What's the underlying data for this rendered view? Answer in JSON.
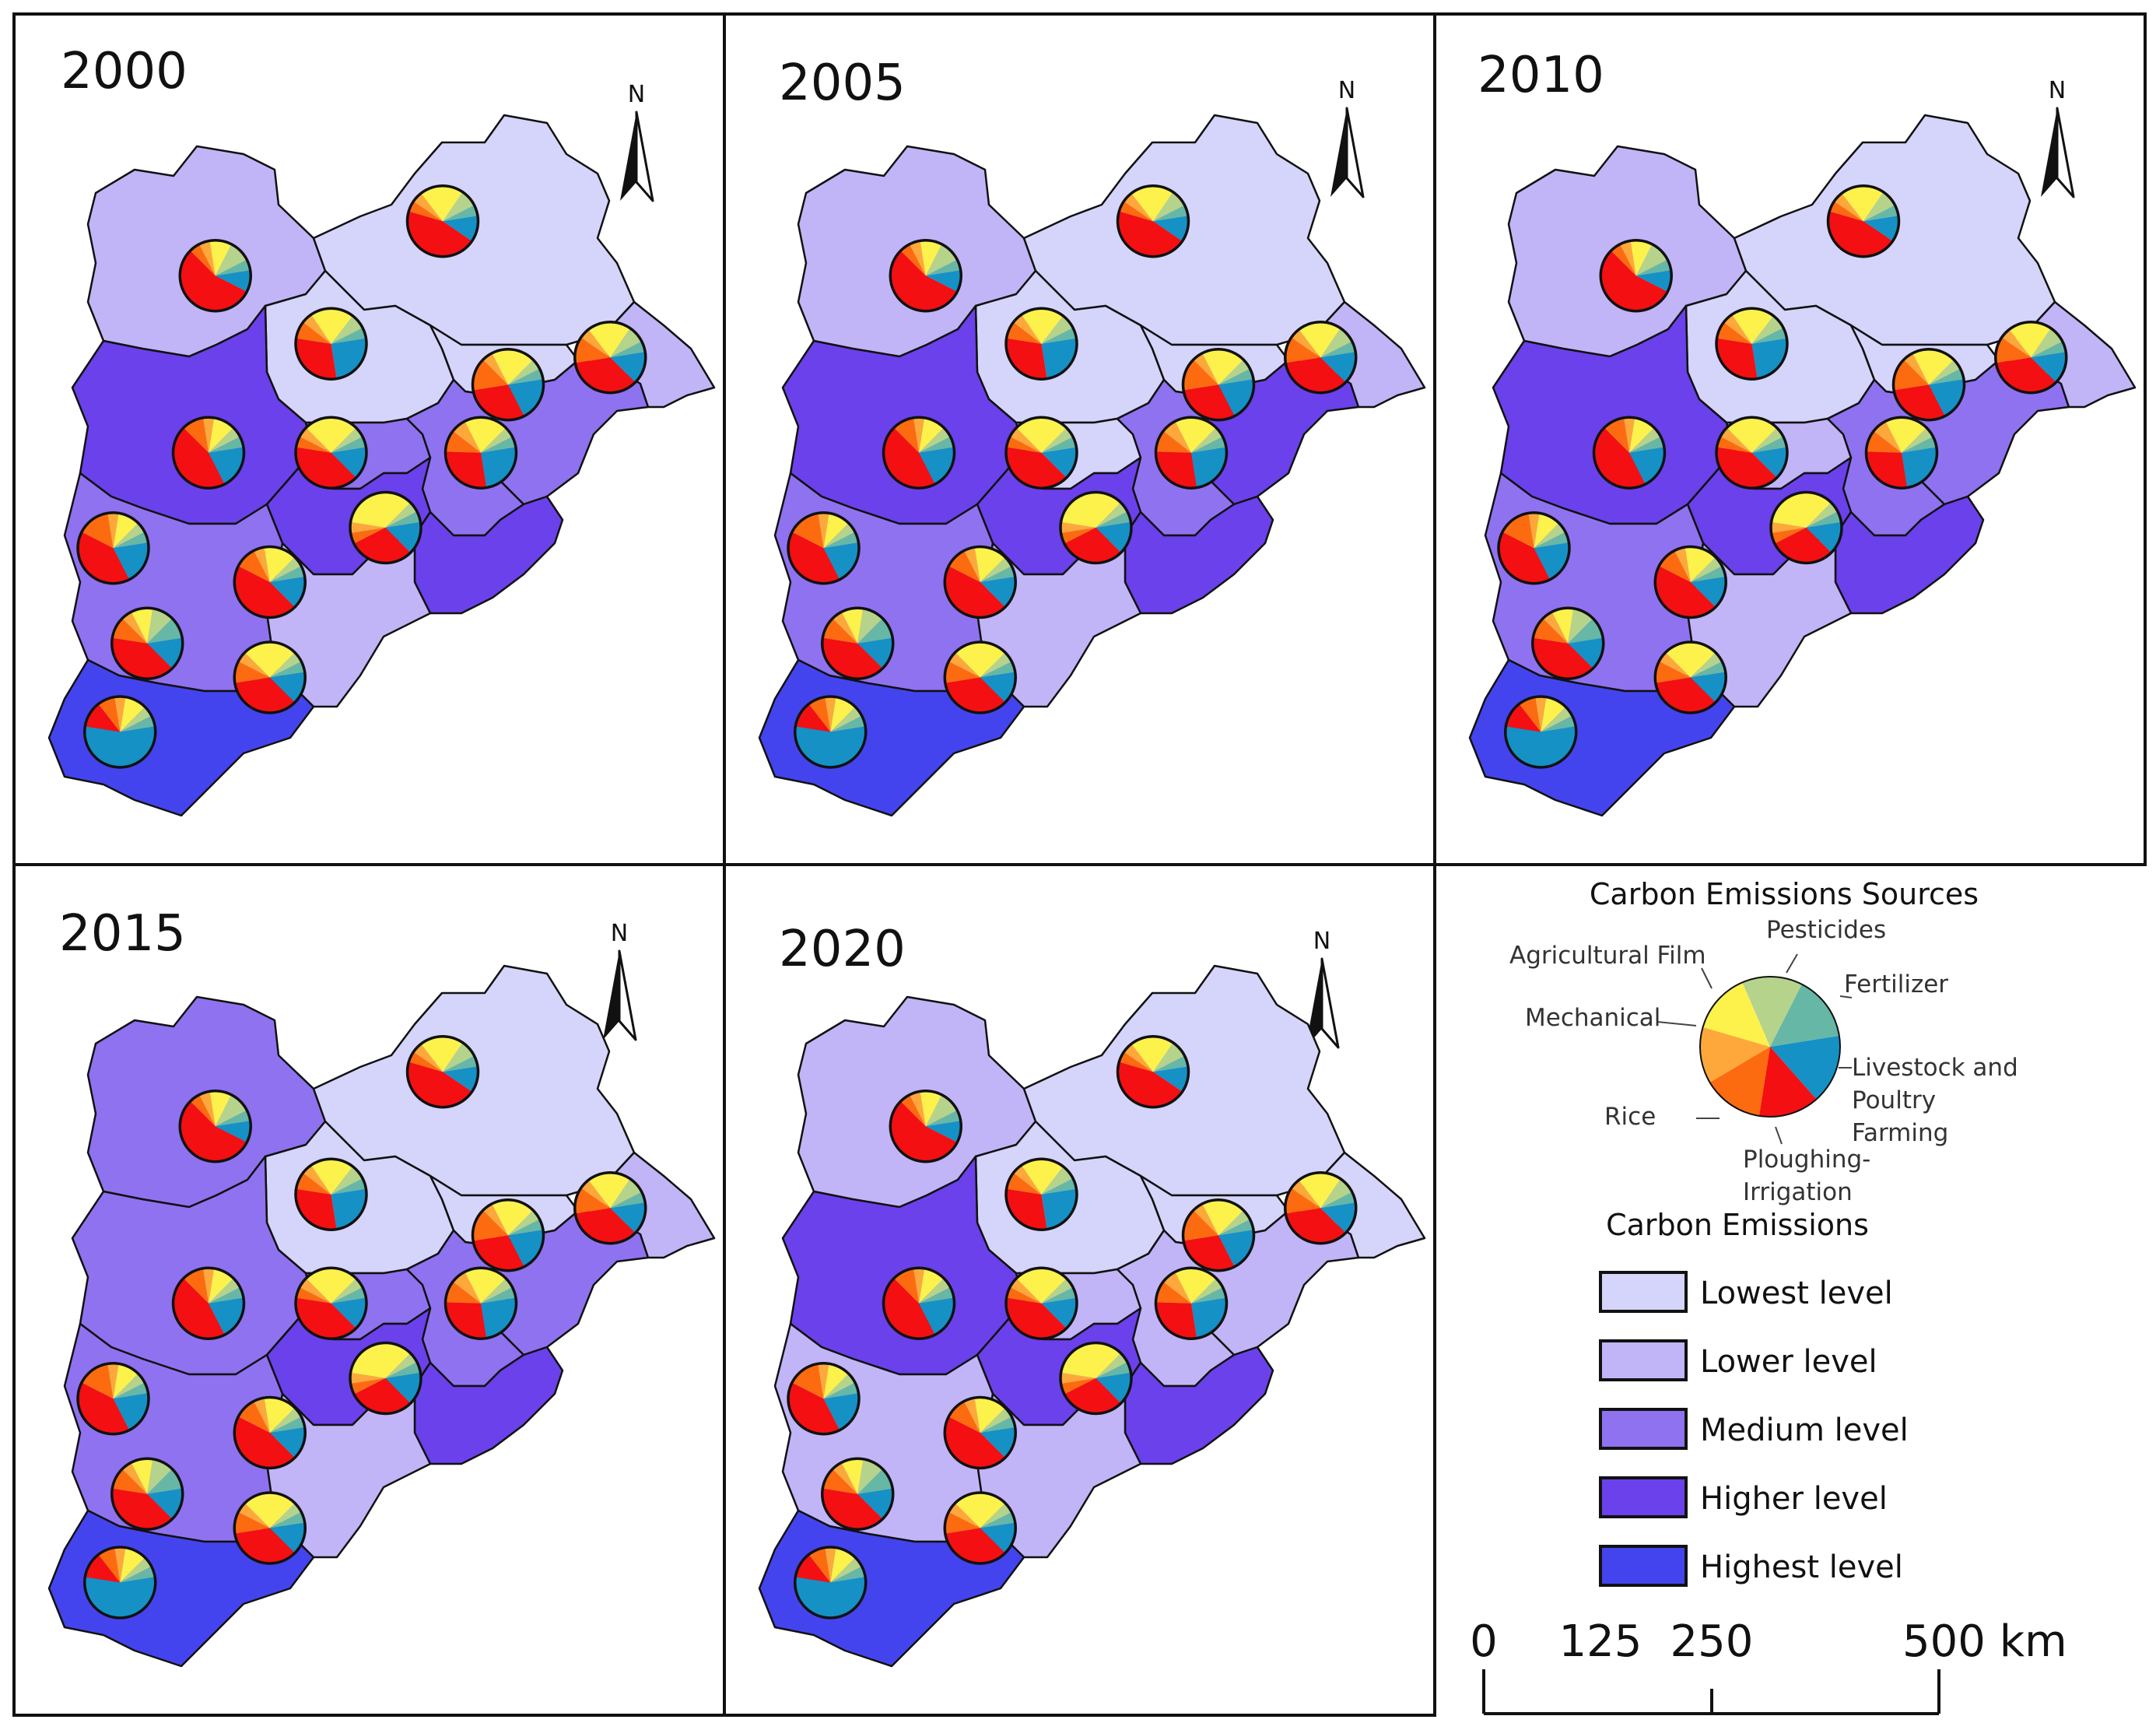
{
  "figure": {
    "panels": [
      {
        "year": "2000",
        "shades": [
          "lower",
          "lowest",
          "lowest",
          "lowest",
          "medium",
          "lower",
          "higher",
          "medium",
          "medium",
          "higher",
          "higher",
          "lower",
          "medium",
          "highest"
        ]
      },
      {
        "year": "2005",
        "shades": [
          "lower",
          "lowest",
          "lowest",
          "lowest",
          "higher",
          "lower",
          "higher",
          "lowest",
          "medium",
          "higher",
          "higher",
          "lower",
          "medium",
          "highest"
        ]
      },
      {
        "year": "2010",
        "shades": [
          "lower",
          "lowest",
          "lowest",
          "lowest",
          "medium",
          "lower",
          "higher",
          "lower",
          "medium",
          "higher",
          "higher",
          "lower",
          "medium",
          "highest"
        ]
      },
      {
        "year": "2015",
        "shades": [
          "medium",
          "lowest",
          "lowest",
          "lowest",
          "medium",
          "lower",
          "medium",
          "medium",
          "medium",
          "higher",
          "higher",
          "lower",
          "medium",
          "highest"
        ]
      },
      {
        "year": "2020",
        "shades": [
          "lower",
          "lowest",
          "lowest",
          "lowest",
          "lower",
          "lowest",
          "higher",
          "lower",
          "lower",
          "higher",
          "higher",
          "lower",
          "lower",
          "highest"
        ]
      }
    ],
    "north_label": "N"
  },
  "legend": {
    "sources_title": "Carbon Emissions Sources",
    "sources": [
      {
        "key": "fertilizer",
        "label": "Fertilizer",
        "color": "#1591c5",
        "share": 0.16
      },
      {
        "key": "livestock",
        "label": "Livestock and Poultry Farming",
        "label_lines": [
          "Livestock and",
          "Poultry",
          "Farming"
        ],
        "color": "#f40f12",
        "share": 0.14
      },
      {
        "key": "ploughing",
        "label": "Ploughing-Irrigation",
        "label_lines": [
          "Ploughing-",
          "Irrigation"
        ],
        "color": "#fd6b10",
        "share": 0.14
      },
      {
        "key": "rice",
        "label": "Rice",
        "color": "#fea83c",
        "share": 0.13
      },
      {
        "key": "mechanical",
        "label": "Mechanical",
        "color": "#fdf24c",
        "share": 0.14
      },
      {
        "key": "film",
        "label": "Agricultural Film",
        "color": "#b6d38c",
        "share": 0.14
      },
      {
        "key": "pesticides",
        "label": "Pesticides",
        "color": "#66b7a6",
        "share": 0.15
      }
    ],
    "levels_title": "Carbon Emissions",
    "levels": [
      {
        "key": "lowest",
        "label": "Lowest level",
        "color": "#d5d4fb"
      },
      {
        "key": "lower",
        "label": "Lower level",
        "color": "#c1b5f8"
      },
      {
        "key": "medium",
        "label": "Medium level",
        "color": "#8f72f0"
      },
      {
        "key": "higher",
        "label": "Higher level",
        "color": "#6b41eb"
      },
      {
        "key": "highest",
        "label": "Highest level",
        "color": "#4444ee"
      }
    ],
    "scale": {
      "ticks": [
        "0",
        "125",
        "250",
        "500 km"
      ]
    }
  },
  "pie_shares": [
    {
      "fertilizer": 0.1,
      "livestock": 0.55,
      "ploughing": 0.05,
      "rice": 0.05,
      "mechanical": 0.1,
      "film": 0.1,
      "pesticides": 0.05
    },
    {
      "fertilizer": 0.12,
      "livestock": 0.45,
      "ploughing": 0.05,
      "rice": 0.05,
      "mechanical": 0.2,
      "film": 0.08,
      "pesticides": 0.05
    },
    {
      "fertilizer": 0.25,
      "livestock": 0.3,
      "ploughing": 0.08,
      "rice": 0.05,
      "mechanical": 0.2,
      "film": 0.07,
      "pesticides": 0.05
    },
    {
      "fertilizer": 0.25,
      "livestock": 0.28,
      "ploughing": 0.1,
      "rice": 0.07,
      "mechanical": 0.2,
      "film": 0.05,
      "pesticides": 0.05
    },
    {
      "fertilizer": 0.2,
      "livestock": 0.3,
      "ploughing": 0.15,
      "rice": 0.05,
      "mechanical": 0.2,
      "film": 0.05,
      "pesticides": 0.05
    },
    {
      "fertilizer": 0.15,
      "livestock": 0.35,
      "ploughing": 0.12,
      "rice": 0.05,
      "mechanical": 0.2,
      "film": 0.08,
      "pesticides": 0.05
    },
    {
      "fertilizer": 0.2,
      "livestock": 0.45,
      "ploughing": 0.1,
      "rice": 0.05,
      "mechanical": 0.1,
      "film": 0.05,
      "pesticides": 0.05
    },
    {
      "fertilizer": 0.15,
      "livestock": 0.4,
      "ploughing": 0.05,
      "rice": 0.05,
      "mechanical": 0.25,
      "film": 0.05,
      "pesticides": 0.05
    },
    {
      "fertilizer": 0.15,
      "livestock": 0.3,
      "ploughing": 0.05,
      "rice": 0.05,
      "mechanical": 0.35,
      "film": 0.05,
      "pesticides": 0.05
    },
    {
      "fertilizer": 0.2,
      "livestock": 0.4,
      "ploughing": 0.15,
      "rice": 0.05,
      "mechanical": 0.1,
      "film": 0.05,
      "pesticides": 0.05
    },
    {
      "fertilizer": 0.15,
      "livestock": 0.45,
      "ploughing": 0.1,
      "rice": 0.05,
      "mechanical": 0.15,
      "film": 0.05,
      "pesticides": 0.05
    },
    {
      "fertilizer": 0.15,
      "livestock": 0.4,
      "ploughing": 0.1,
      "rice": 0.05,
      "mechanical": 0.1,
      "film": 0.1,
      "pesticides": 0.1
    },
    {
      "fertilizer": 0.15,
      "livestock": 0.35,
      "ploughing": 0.1,
      "rice": 0.05,
      "mechanical": 0.25,
      "film": 0.05,
      "pesticides": 0.05
    },
    {
      "fertilizer": 0.55,
      "livestock": 0.12,
      "ploughing": 0.08,
      "rice": 0.05,
      "mechanical": 0.1,
      "film": 0.05,
      "pesticides": 0.05
    }
  ]
}
